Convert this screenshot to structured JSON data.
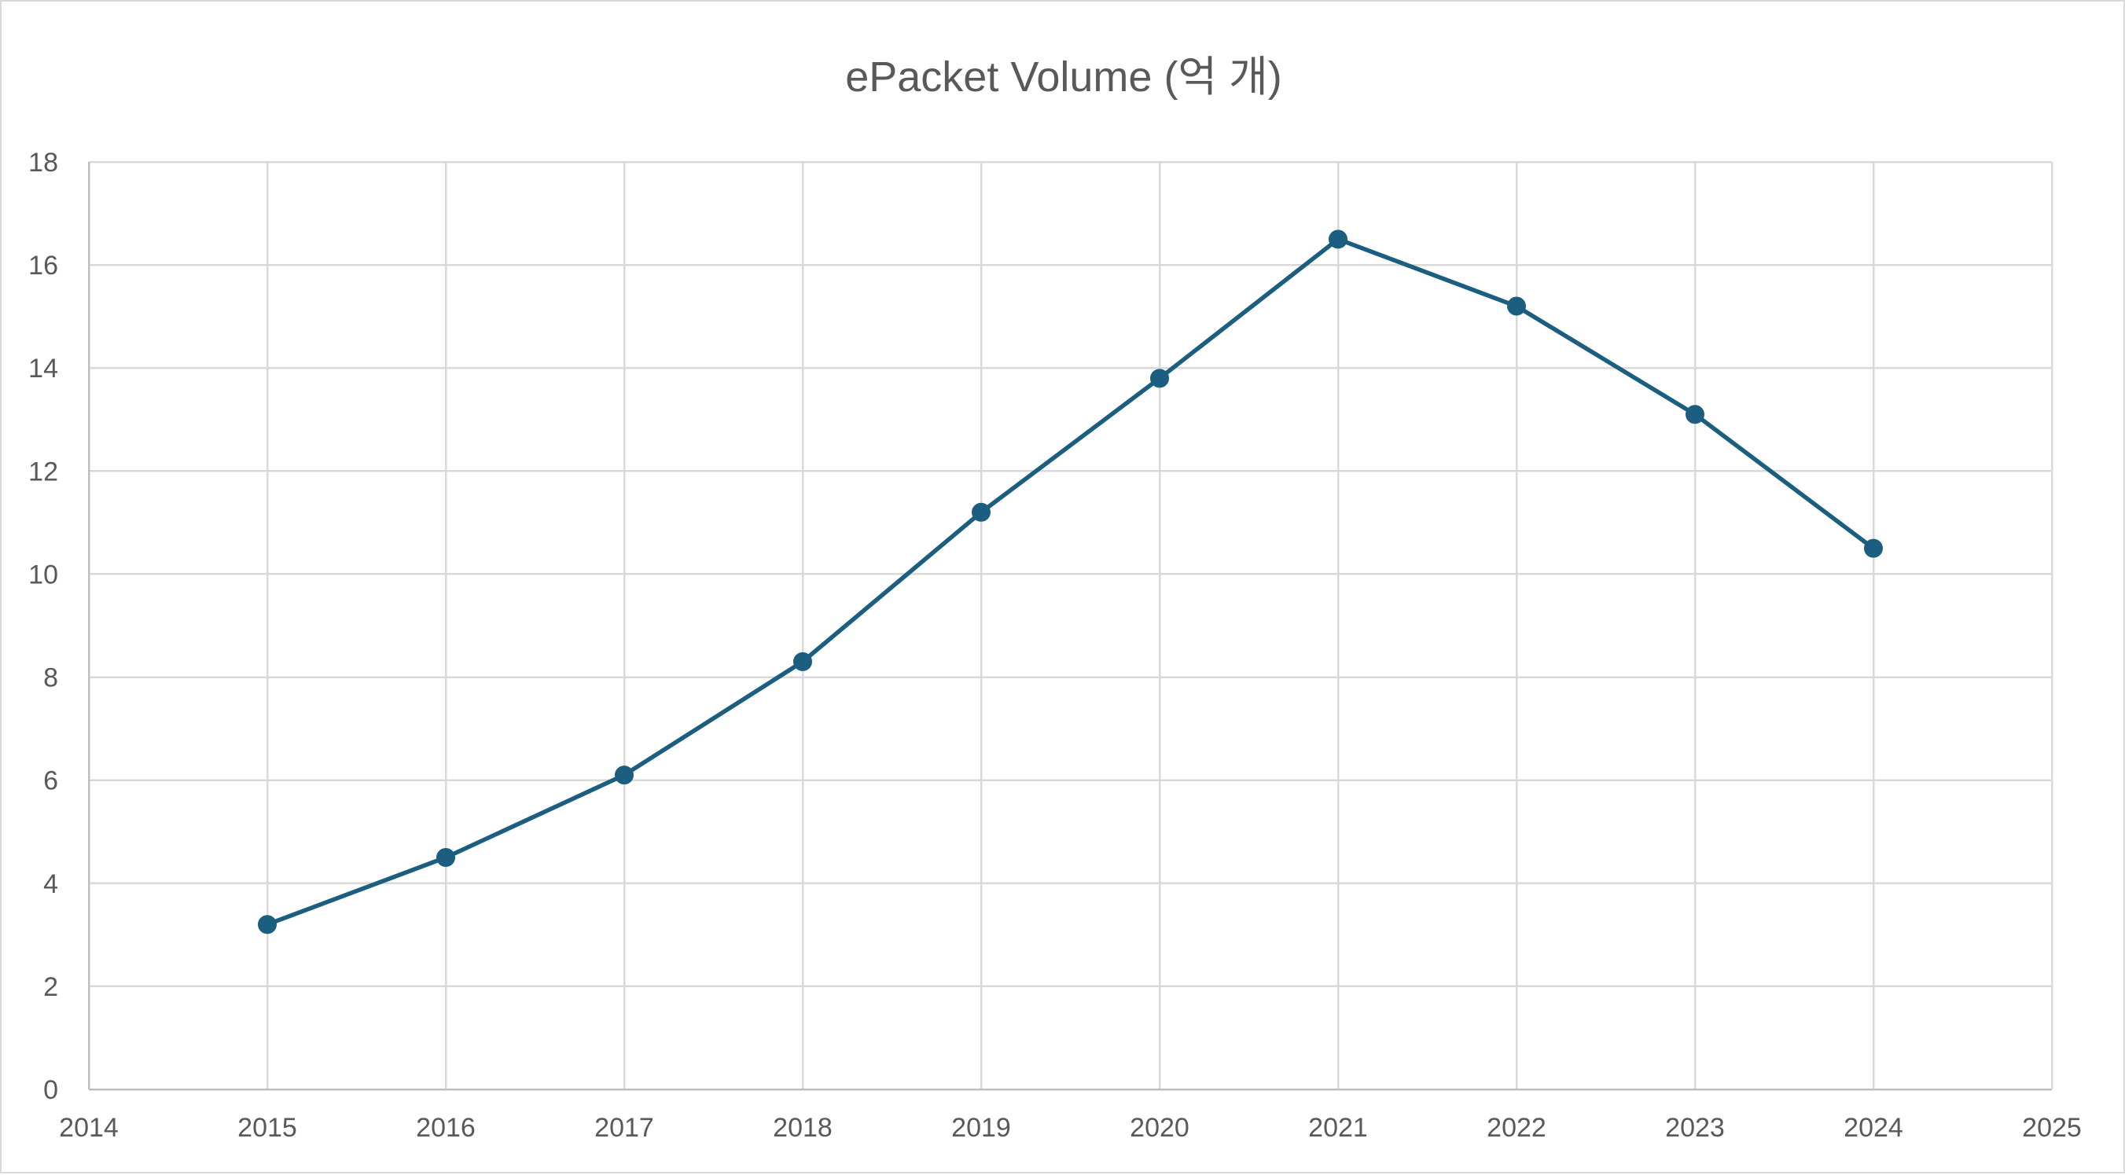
{
  "chart_data": {
    "type": "scatter",
    "title": "ePacket Volume (억 개)",
    "xlabel": "",
    "ylabel": "",
    "x": [
      2015,
      2016,
      2017,
      2018,
      2019,
      2020,
      2021,
      2022,
      2023,
      2024
    ],
    "series": [
      {
        "values": [
          3.2,
          4.5,
          6.1,
          8.3,
          11.2,
          13.8,
          16.5,
          15.2,
          13.1,
          10.5
        ],
        "color": "#1b5e80",
        "marker": "circle",
        "line": "straight"
      }
    ],
    "xlim": [
      2014,
      2025
    ],
    "ylim": [
      0,
      18
    ],
    "x_ticks": [
      2014,
      2015,
      2016,
      2017,
      2018,
      2019,
      2020,
      2021,
      2022,
      2023,
      2024,
      2025
    ],
    "y_ticks": [
      0,
      2,
      4,
      6,
      8,
      10,
      12,
      14,
      16,
      18
    ],
    "grid": true,
    "legend": "none"
  }
}
